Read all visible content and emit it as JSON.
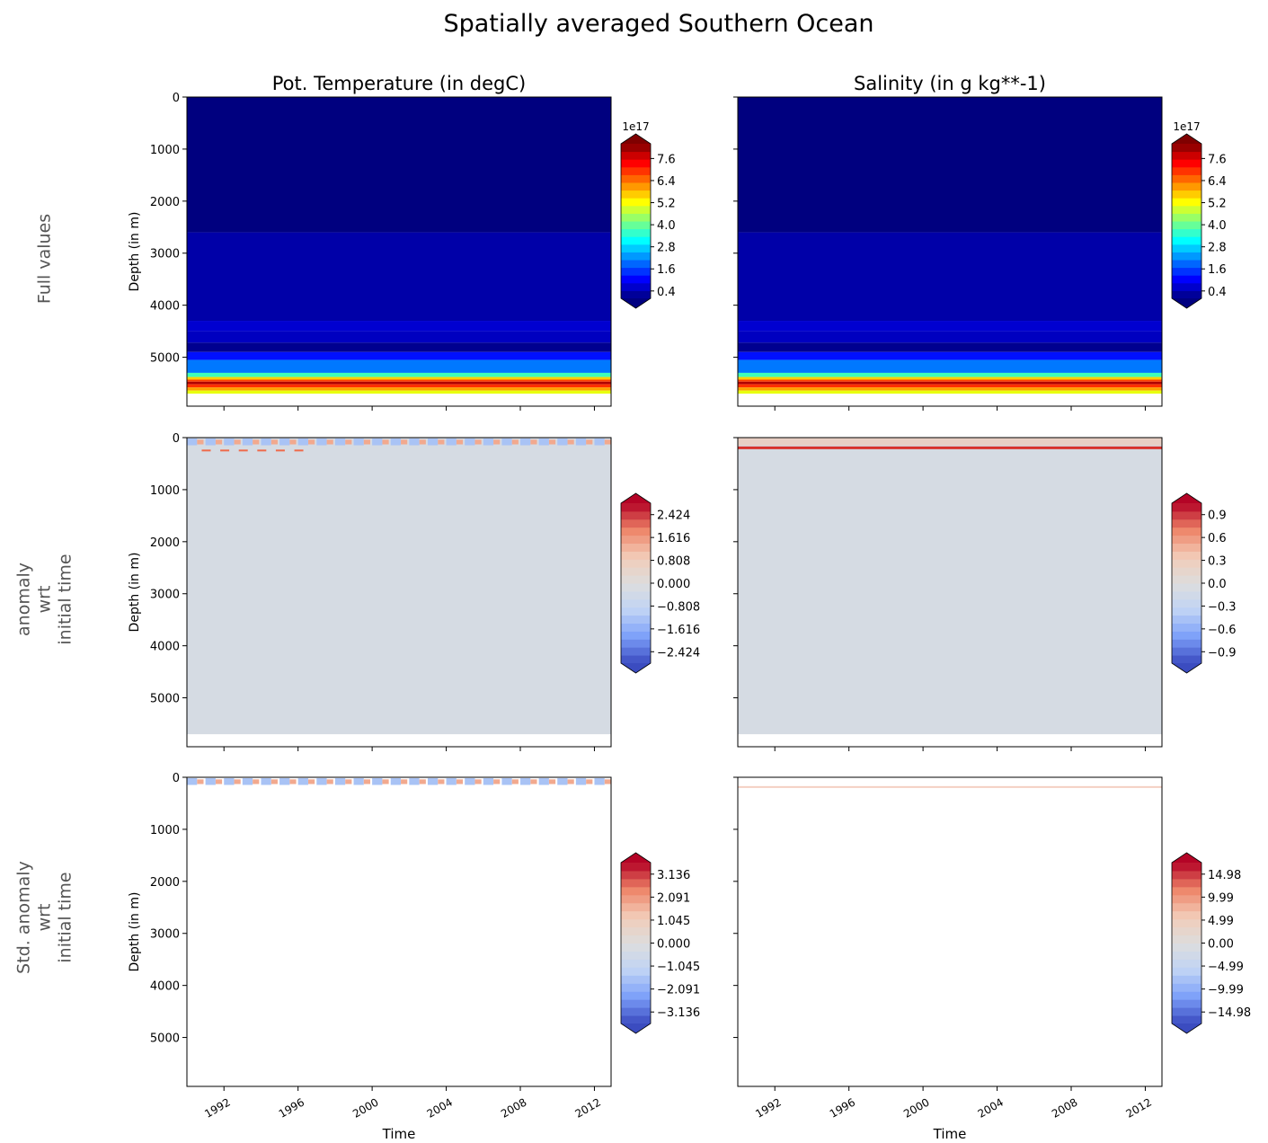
{
  "figure": {
    "suptitle": "Spatially averaged Southern Ocean",
    "row_labels": [
      [
        "Full values"
      ],
      [
        "anomaly",
        "wrt",
        "initial time"
      ],
      [
        "Std. anomaly",
        "wrt",
        "initial time"
      ]
    ],
    "column_titles": [
      "Pot. Temperature (in degC)",
      "Salinity (in g kg**-1)"
    ]
  },
  "chart_data": {
    "type": "heatmap",
    "xlabel": "Time",
    "ylabel": "Depth (in m)",
    "xlim": [
      1990.0,
      2012.9
    ],
    "ylim": [
      5940,
      0
    ],
    "xticks": [
      "1992",
      "1996",
      "2000",
      "2004",
      "2008",
      "2012"
    ],
    "xtick_values": [
      1992,
      1996,
      2000,
      2004,
      2008,
      2012
    ],
    "yticks": [
      "0",
      "1000",
      "2000",
      "3000",
      "4000",
      "5000"
    ],
    "ytick_values": [
      0,
      1000,
      2000,
      3000,
      4000,
      5000
    ],
    "panels": [
      {
        "row": 0,
        "col": 0,
        "cmap": "jet",
        "colorbar_offset": "1e17",
        "colorbar_range": [
          0.0,
          8.4
        ],
        "colorbar_ticks": [
          "0.4",
          "1.6",
          "2.8",
          "4.0",
          "5.2",
          "6.4",
          "7.6"
        ],
        "colorbar_tick_values": [
          0.4,
          1.6,
          2.8,
          4.0,
          5.2,
          6.4,
          7.6
        ],
        "bands": [
          [
            0,
            2600,
            "#00007f"
          ],
          [
            2600,
            4300,
            "#0000a8"
          ],
          [
            4300,
            4500,
            "#0000d0"
          ],
          [
            4500,
            4720,
            "#0000c0"
          ],
          [
            4720,
            4900,
            "#00008f"
          ],
          [
            4900,
            5050,
            "#0010ff"
          ],
          [
            5050,
            5300,
            "#0078ff"
          ],
          [
            5300,
            5380,
            "#40ffb8"
          ],
          [
            5380,
            5430,
            "#ffd000"
          ],
          [
            5430,
            5470,
            "#ff4000"
          ],
          [
            5470,
            5520,
            "#b00000"
          ],
          [
            5520,
            5580,
            "#ff3000"
          ],
          [
            5580,
            5640,
            "#ffa000"
          ],
          [
            5640,
            5700,
            "#e8ff10"
          ]
        ]
      },
      {
        "row": 0,
        "col": 1,
        "cmap": "jet",
        "colorbar_offset": "1e17",
        "colorbar_range": [
          0.0,
          8.4
        ],
        "colorbar_ticks": [
          "0.4",
          "1.6",
          "2.8",
          "4.0",
          "5.2",
          "6.4",
          "7.6"
        ],
        "colorbar_tick_values": [
          0.4,
          1.6,
          2.8,
          4.0,
          5.2,
          6.4,
          7.6
        ],
        "bands": [
          [
            0,
            2600,
            "#00007f"
          ],
          [
            2600,
            4300,
            "#0000a8"
          ],
          [
            4300,
            4500,
            "#0000d0"
          ],
          [
            4500,
            4720,
            "#0000c0"
          ],
          [
            4720,
            4900,
            "#00008f"
          ],
          [
            4900,
            5050,
            "#0010ff"
          ],
          [
            5050,
            5300,
            "#0078ff"
          ],
          [
            5300,
            5380,
            "#40ffb8"
          ],
          [
            5380,
            5430,
            "#ffd000"
          ],
          [
            5430,
            5470,
            "#ff4000"
          ],
          [
            5470,
            5520,
            "#b00000"
          ],
          [
            5520,
            5580,
            "#ff3000"
          ],
          [
            5580,
            5640,
            "#ffa000"
          ],
          [
            5640,
            5700,
            "#e8ff10"
          ]
        ]
      },
      {
        "row": 1,
        "col": 0,
        "cmap": "coolwarm",
        "colorbar_offset": "",
        "colorbar_range": [
          -2.828,
          2.828
        ],
        "colorbar_ticks": [
          "−2.424",
          "−1.616",
          "−0.808",
          "0.000",
          "0.808",
          "1.616",
          "2.424"
        ],
        "colorbar_tick_values": [
          -2.424,
          -1.616,
          -0.808,
          0,
          0.808,
          1.616,
          2.424
        ],
        "bands": [
          [
            0,
            5700,
            "#d5dbe3"
          ]
        ],
        "surface_pattern": "oscillating"
      },
      {
        "row": 1,
        "col": 1,
        "cmap": "coolwarm",
        "colorbar_offset": "",
        "colorbar_range": [
          -1.05,
          1.05
        ],
        "colorbar_ticks": [
          "−0.9",
          "−0.6",
          "−0.3",
          "0.0",
          "0.3",
          "0.6",
          "0.9"
        ],
        "colorbar_tick_values": [
          -0.9,
          -0.6,
          -0.3,
          0,
          0.3,
          0.6,
          0.9
        ],
        "bands": [
          [
            0,
            5700,
            "#d5dbe3"
          ],
          [
            0,
            150,
            "#e8cfc4"
          ]
        ],
        "surface_pattern": "red-line"
      },
      {
        "row": 2,
        "col": 0,
        "cmap": "coolwarm",
        "colorbar_offset": "",
        "colorbar_range": [
          -3.659,
          3.659
        ],
        "colorbar_ticks": [
          "−3.136",
          "−2.091",
          "−1.045",
          "0.000",
          "1.045",
          "2.091",
          "3.136"
        ],
        "colorbar_tick_values": [
          -3.136,
          -2.091,
          -1.045,
          0,
          1.045,
          2.091,
          3.136
        ],
        "bands": [],
        "surface_pattern": "oscillating"
      },
      {
        "row": 2,
        "col": 1,
        "cmap": "coolwarm",
        "colorbar_offset": "",
        "colorbar_range": [
          -17.48,
          17.48
        ],
        "colorbar_ticks": [
          "−14.98",
          "−9.99",
          "−4.99",
          "0.00",
          "4.99",
          "9.99",
          "14.98"
        ],
        "colorbar_tick_values": [
          -14.98,
          -9.99,
          -4.99,
          0,
          4.99,
          9.99,
          14.98
        ],
        "bands": [],
        "surface_pattern": "faint-line"
      }
    ]
  }
}
